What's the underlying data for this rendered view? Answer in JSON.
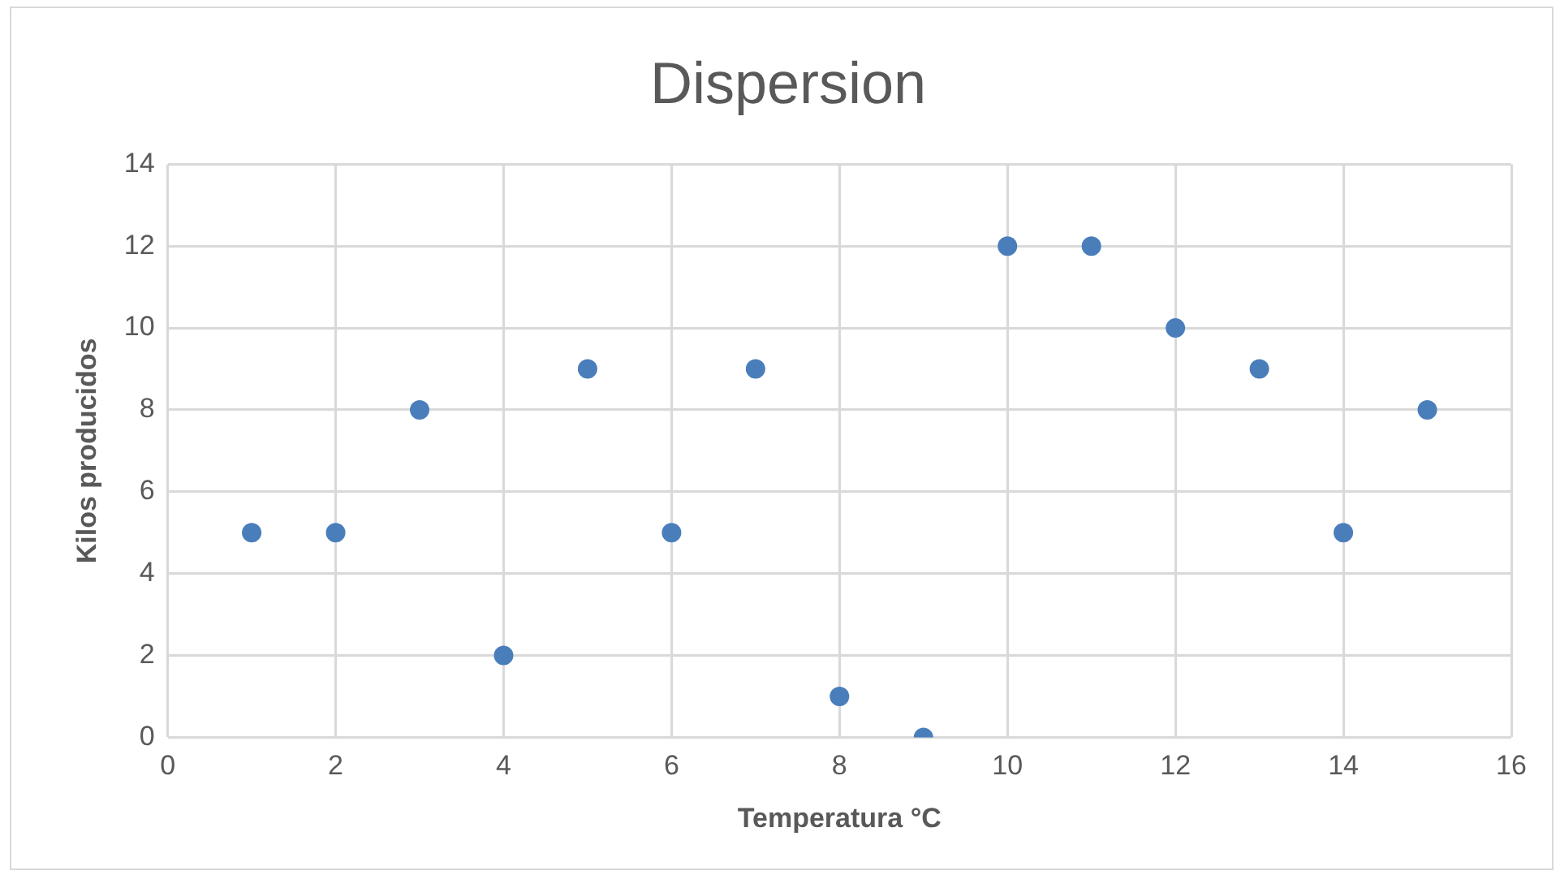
{
  "chart_data": {
    "type": "scatter",
    "title": "Dispersion",
    "xlabel": "Temperatura °C",
    "ylabel": "Kilos producidos",
    "x": [
      1,
      2,
      3,
      4,
      5,
      6,
      7,
      8,
      9,
      10,
      11,
      12,
      13,
      14,
      15
    ],
    "series": [
      {
        "color": "#4a7ebb",
        "values": [
          5,
          5,
          8,
          2,
          9,
          5,
          9,
          1,
          0,
          12,
          12,
          10,
          9,
          5,
          8
        ]
      }
    ],
    "xlim": [
      0,
      16
    ],
    "xticks": [
      0,
      2,
      4,
      6,
      8,
      10,
      12,
      14,
      16
    ],
    "ylim": [
      0,
      14
    ],
    "yticks": [
      0,
      2,
      4,
      6,
      8,
      10,
      12,
      14
    ],
    "grid": true,
    "legend": false,
    "marker": "circle"
  }
}
